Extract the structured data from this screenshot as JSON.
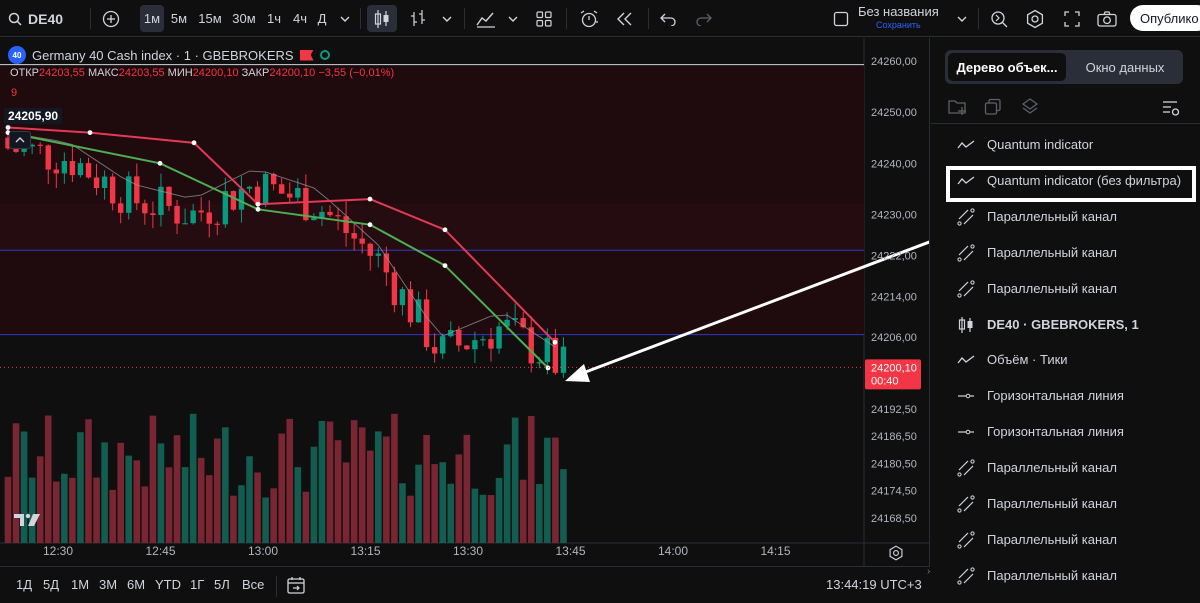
{
  "toolbar": {
    "symbol": "DE40",
    "intervals": [
      "1м",
      "5м",
      "15м",
      "30м",
      "1ч",
      "4ч",
      "Д"
    ],
    "active_interval": "1м",
    "layout_name": "Без названия",
    "layout_status": "Сохранить",
    "publish_label": "Опублико"
  },
  "legend": {
    "title": "Germany 40 Cash index · 1 · GBEBROKERS",
    "logo_text": "40",
    "ohlc": {
      "open_label": "ОТКР",
      "open": "24203,55",
      "high_label": "МАКС",
      "high": "24203,55",
      "low_label": "МИН",
      "low": "24200,10",
      "close_label": "ЗАКР",
      "close": "24200,10",
      "change": "−3,55 (−0,01%)"
    },
    "indicator_value": "9",
    "price_marker": "24205,90"
  },
  "price_axis": {
    "ticks": [
      "24260,00",
      "24250,00",
      "24240,00",
      "24230,00",
      "24222,00",
      "24214,00",
      "24206,00",
      "24192,50",
      "24186,50",
      "24180,50",
      "24174,50",
      "24168,50"
    ],
    "current_price": "24200,10",
    "countdown": "00:40"
  },
  "time_axis": {
    "ticks": [
      "12:30",
      "12:45",
      "13:00",
      "13:15",
      "13:30",
      "13:45",
      "14:00",
      "14:15"
    ]
  },
  "bottom_bar": {
    "ranges": [
      "1Д",
      "5Д",
      "1М",
      "3М",
      "6М",
      "YTD",
      "1Г",
      "5Л",
      "Все"
    ],
    "clock": "13:44:19 UTC+3"
  },
  "right_panel": {
    "tabs": [
      "Дерево объек...",
      "Окно данных"
    ],
    "items": [
      {
        "label": "Quantum indicator",
        "icon": "indicator-icon"
      },
      {
        "label": "Quantum indicator (без фильтра)",
        "icon": "indicator-icon"
      },
      {
        "label": "Параллельный канал",
        "icon": "parallel-channel-icon"
      },
      {
        "label": "Параллельный канал",
        "icon": "parallel-channel-icon"
      },
      {
        "label": "Параллельный канал",
        "icon": "parallel-channel-icon"
      },
      {
        "label": "DE40 · GBEBROKERS, 1",
        "icon": "candles-icon"
      },
      {
        "label": "Объём · Тики",
        "icon": "indicator-icon"
      },
      {
        "label": "Горизонтальная линия",
        "icon": "horizontal-line-icon"
      },
      {
        "label": "Горизонтальная линия",
        "icon": "horizontal-line-icon"
      },
      {
        "label": "Параллельный канал",
        "icon": "parallel-channel-icon"
      },
      {
        "label": "Параллельный канал",
        "icon": "parallel-channel-icon"
      },
      {
        "label": "Параллельный канал",
        "icon": "parallel-channel-icon"
      },
      {
        "label": "Параллельный канал",
        "icon": "parallel-channel-icon"
      }
    ]
  },
  "colors": {
    "up": "#089981",
    "down": "#f23645",
    "accent": "#2962ff",
    "channel_fill": "#2a0d12",
    "ma_green": "#4caf50",
    "ma_red": "#e53958"
  },
  "chart_data": {
    "type": "candlestick",
    "x": [
      "12:30",
      "12:45",
      "13:00",
      "13:15",
      "13:30",
      "13:45"
    ],
    "close_trend": [
      24243,
      24241,
      24233,
      24230,
      24236,
      24232,
      24221,
      24203,
      24208,
      24200
    ],
    "current_price": 24200.1,
    "horizontal_levels": [
      24223.0,
      24206.5
    ],
    "ylim": [
      24168.5,
      24260
    ]
  }
}
